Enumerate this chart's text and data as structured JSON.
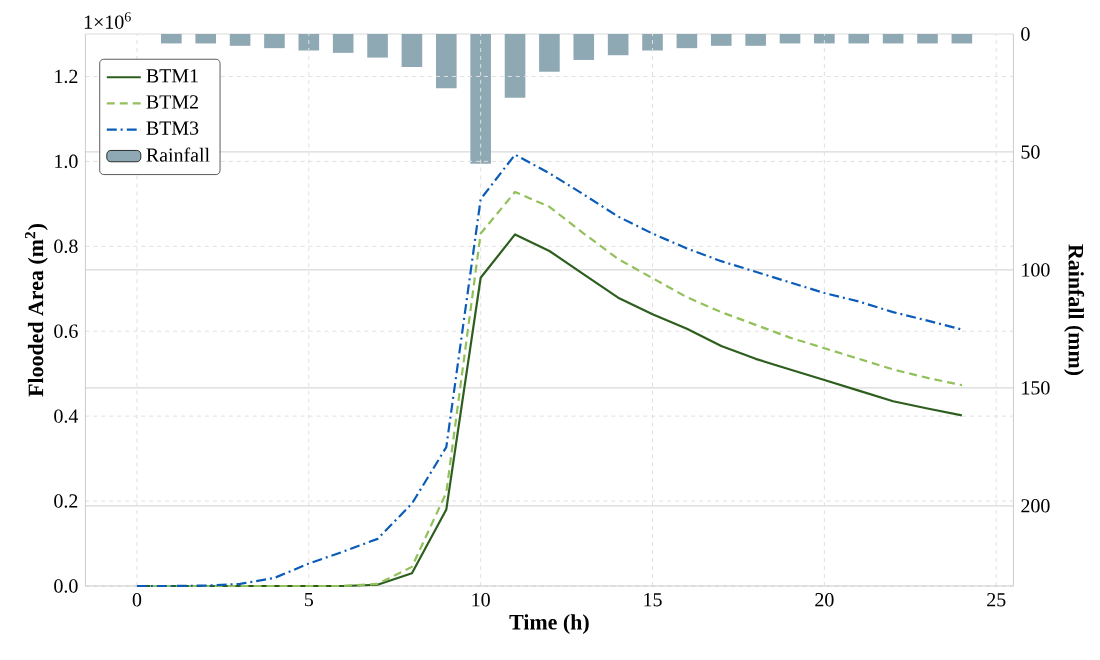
{
  "chart_data": {
    "type": "line",
    "xlabel": "Time (h)",
    "ylabel": "Flooded Area (m$^{2}$)",
    "y2label": "Rainfall (mm)",
    "annotations": [
      "1×10$^{6}$"
    ],
    "x": [
      0,
      1,
      2,
      3,
      4,
      5,
      6,
      7,
      8,
      9,
      10,
      11,
      12,
      13,
      14,
      15,
      16,
      17,
      18,
      19,
      20,
      21,
      22,
      23,
      24
    ],
    "series": [
      {
        "name": "BTM1",
        "color": "#2d5e1e",
        "line_style": "solid",
        "values": [
          0,
          0,
          0,
          0,
          0,
          0,
          0,
          0.003,
          0.03,
          0.18,
          0.726,
          0.828,
          0.789,
          0.734,
          0.679,
          0.64,
          0.606,
          0.565,
          0.535,
          0.51,
          0.485,
          0.46,
          0.435,
          0.418,
          0.402
        ]
      },
      {
        "name": "BTM2",
        "color": "#92c05a",
        "line_style": "dashed",
        "values": [
          0,
          0,
          0,
          0,
          0,
          0,
          0,
          0.005,
          0.045,
          0.22,
          0.83,
          0.928,
          0.893,
          0.83,
          0.77,
          0.725,
          0.68,
          0.645,
          0.615,
          0.585,
          0.56,
          0.535,
          0.51,
          0.49,
          0.473
        ]
      },
      {
        "name": "BTM3",
        "color": "#0a5cb8",
        "line_style": "dashdot",
        "values": [
          0,
          0,
          0.001,
          0.005,
          0.019,
          0.053,
          0.081,
          0.111,
          0.194,
          0.327,
          0.911,
          1.016,
          0.972,
          0.922,
          0.87,
          0.83,
          0.795,
          0.765,
          0.74,
          0.715,
          0.69,
          0.67,
          0.645,
          0.625,
          0.604
        ]
      },
      {
        "name": "Rainfall",
        "type": "bar",
        "axis": "y2",
        "color": "#8fa9b4",
        "x": [
          1,
          2,
          3,
          4,
          5,
          6,
          7,
          8,
          9,
          10,
          11,
          12,
          13,
          14,
          15,
          16,
          17,
          18,
          19,
          20,
          21,
          22,
          23,
          24
        ],
        "values": [
          4,
          4,
          5,
          6,
          7,
          8,
          10,
          14,
          23,
          55,
          27,
          16,
          11,
          9,
          7,
          6,
          5,
          5,
          4,
          4,
          4,
          4,
          4,
          4
        ]
      }
    ],
    "xlim": [
      -1.5,
      25.5
    ],
    "xticks": [
      0,
      5,
      10,
      15,
      20,
      25
    ],
    "ylim": [
      0,
      1.3
    ],
    "yticks": [
      {
        "value": 0,
        "label": "0.0"
      },
      0.2,
      0.4,
      0.6,
      0.8,
      {
        "value": 1,
        "label": "1.0"
      },
      1.2
    ],
    "y2lim": [
      234,
      0
    ],
    "y2ticks": [
      0,
      50,
      100,
      150,
      200
    ],
    "grid": true,
    "legend": "top left"
  }
}
